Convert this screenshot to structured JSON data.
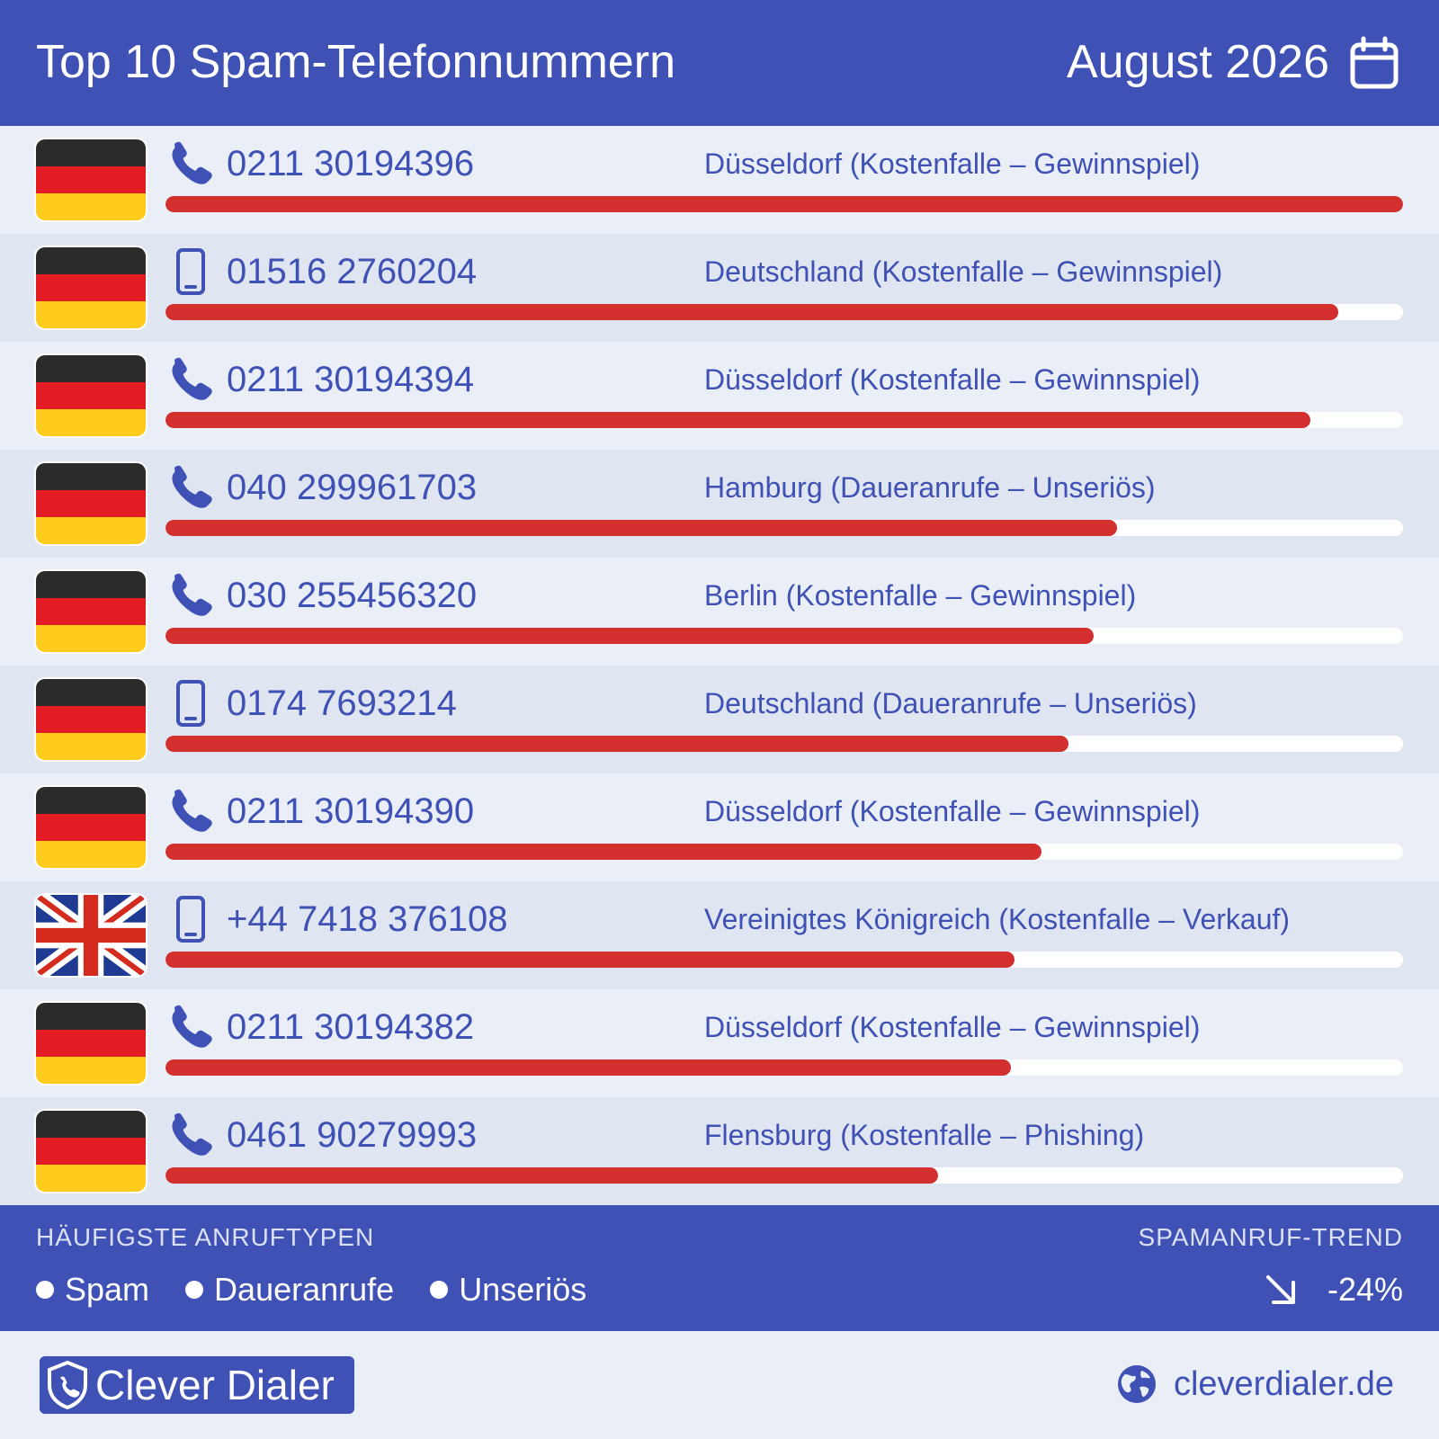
{
  "header": {
    "title": "Top 10 Spam-Telefonnummern",
    "month": "August 2026"
  },
  "rows": [
    {
      "flag": "de-flag",
      "phone_icon": "phone-icon",
      "number": "0211 30194396",
      "location": "Düsseldorf (Kostenfalle – Gewinnspiel)",
      "level": 1.0
    },
    {
      "flag": "de-flag",
      "phone_icon": "mobile-icon",
      "number": "01516 2760204",
      "location": "Deutschland (Kostenfalle – Gewinnspiel)",
      "level": 0.948
    },
    {
      "flag": "de-flag",
      "phone_icon": "phone-icon",
      "number": "0211 30194394",
      "location": "Düsseldorf (Kostenfalle – Gewinnspiel)",
      "level": 0.925
    },
    {
      "flag": "de-flag",
      "phone_icon": "phone-icon",
      "number": "040 299961703",
      "location": "Hamburg (Daueranrufe – Unseriös)",
      "level": 0.769
    },
    {
      "flag": "de-flag",
      "phone_icon": "phone-icon",
      "number": "030 255456320",
      "location": "Berlin (Kostenfalle – Gewinnspiel)",
      "level": 0.75
    },
    {
      "flag": "de-flag",
      "phone_icon": "mobile-icon",
      "number": "0174 7693214",
      "location": "Deutschland (Daueranrufe – Unseriös)",
      "level": 0.73
    },
    {
      "flag": "de-flag",
      "phone_icon": "phone-icon",
      "number": "0211 30194390",
      "location": "Düsseldorf (Kostenfalle – Gewinnspiel)",
      "level": 0.708
    },
    {
      "flag": "uk-flag",
      "phone_icon": "mobile-icon",
      "number": "+44 7418 376108",
      "location": "Vereinigtes Königreich (Kostenfalle – Verkauf)",
      "level": 0.686
    },
    {
      "flag": "de-flag",
      "phone_icon": "phone-icon",
      "number": "0211 30194382",
      "location": "Düsseldorf (Kostenfalle – Gewinnspiel)",
      "level": 0.683
    },
    {
      "flag": "de-flag",
      "phone_icon": "phone-icon",
      "number": "0461 90279993",
      "location": "Flensburg (Kostenfalle – Phishing)",
      "level": 0.624
    }
  ],
  "footer": {
    "types_label": "HÄUFIGSTE ANRUFTYPEN",
    "types": [
      "Spam",
      "Daueranrufe",
      "Unseriös"
    ],
    "trend_label": "SPAMANRUF-TREND",
    "trend_value": "-24%"
  },
  "brand": {
    "name": "Clever Dialer",
    "site": "cleverdialer.de"
  },
  "colors": {
    "primary": "#3f51b5",
    "bar": "#d32f2f",
    "row_a": "#e9eef7",
    "row_b": "#dfe5f1"
  }
}
